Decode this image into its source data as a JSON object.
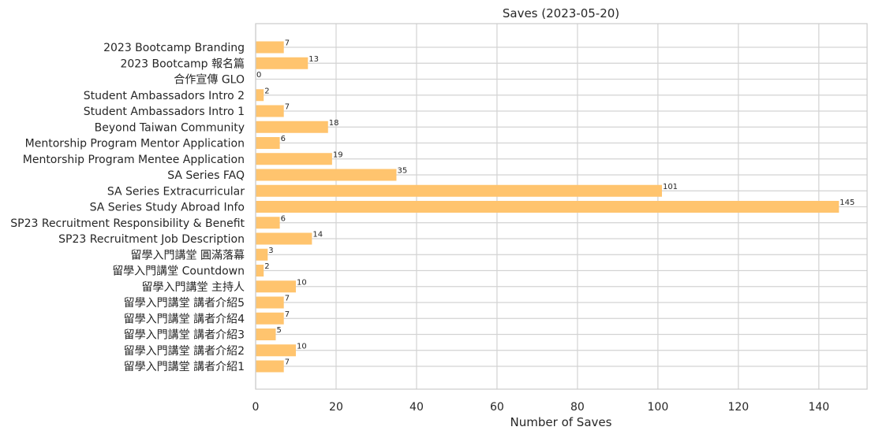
{
  "chart_data": {
    "type": "bar",
    "orientation": "horizontal",
    "title": "Saves (2023-05-20)",
    "xlabel": "Number of Saves",
    "ylabel": "",
    "xlim": [
      0,
      152
    ],
    "xticks": [
      0,
      20,
      40,
      60,
      80,
      100,
      120,
      140
    ],
    "grid": true,
    "bar_color": "#ffc46e",
    "categories": [
      "2023 Bootcamp Branding",
      "2023 Bootcamp 報名篇",
      "合作宣傳 GLO",
      "Student Ambassadors Intro 2",
      "Student Ambassadors Intro 1",
      "Beyond Taiwan Community",
      "Mentorship Program Mentor Application",
      "Mentorship Program Mentee Application",
      "SA Series FAQ",
      "SA Series Extracurricular",
      "SA Series Study Abroad Info",
      "SP23 Recruitment Responsibility & Benefit",
      "SP23 Recruitment Job Description",
      "留學入門講堂 圓滿落幕",
      "留學入門講堂 Countdown",
      "留學入門講堂 主持人",
      "留學入門講堂 講者介紹5",
      "留學入門講堂 講者介紹4",
      "留學入門講堂 講者介紹3",
      "留學入門講堂 講者介紹2",
      "留學入門講堂 講者介紹1"
    ],
    "values": [
      7,
      13,
      0,
      2,
      7,
      18,
      6,
      19,
      35,
      101,
      145,
      6,
      14,
      3,
      2,
      10,
      7,
      7,
      5,
      10,
      7
    ]
  }
}
